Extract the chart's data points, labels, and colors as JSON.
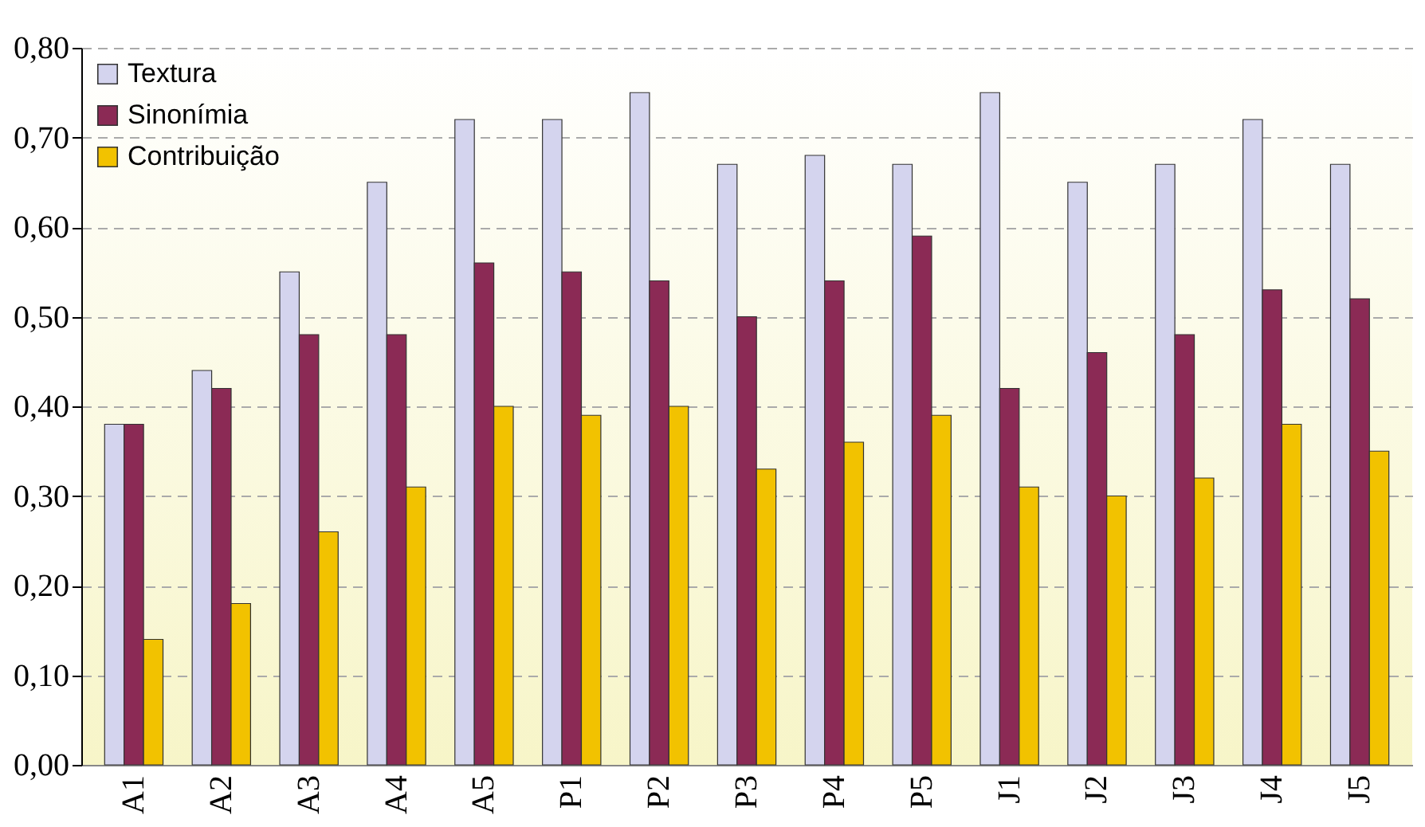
{
  "chart_data": {
    "type": "bar",
    "categories": [
      "A1",
      "A2",
      "A3",
      "A4",
      "A5",
      "P1",
      "P2",
      "P3",
      "P4",
      "P5",
      "J1",
      "J2",
      "J3",
      "J4",
      "J5"
    ],
    "series": [
      {
        "name": "Textura",
        "color": "#d4d4ee",
        "values": [
          0.38,
          0.44,
          0.55,
          0.65,
          0.72,
          0.72,
          0.75,
          0.67,
          0.68,
          0.67,
          0.75,
          0.65,
          0.67,
          0.72,
          0.67
        ]
      },
      {
        "name": "Sinonímia",
        "color": "#8b2a55",
        "values": [
          0.38,
          0.42,
          0.48,
          0.48,
          0.56,
          0.55,
          0.54,
          0.5,
          0.54,
          0.59,
          0.42,
          0.46,
          0.48,
          0.53,
          0.52
        ]
      },
      {
        "name": "Contribuição",
        "color": "#f2c200",
        "values": [
          0.14,
          0.18,
          0.26,
          0.31,
          0.4,
          0.39,
          0.4,
          0.33,
          0.36,
          0.39,
          0.31,
          0.3,
          0.32,
          0.38,
          0.35
        ]
      }
    ],
    "ylim": [
      0,
      0.8
    ],
    "yticks": [
      {
        "value": 0,
        "label": "0,00"
      },
      {
        "value": 0.1,
        "label": "0,10"
      },
      {
        "value": 0.2,
        "label": "0,20"
      },
      {
        "value": 0.3,
        "label": "0,30"
      },
      {
        "value": 0.4,
        "label": "0,40"
      },
      {
        "value": 0.5,
        "label": "0,50"
      },
      {
        "value": 0.6,
        "label": "0,60"
      },
      {
        "value": 0.7,
        "label": "0,70"
      },
      {
        "value": 0.8,
        "label": "0,80"
      }
    ],
    "grid": "y",
    "legend": "top left"
  }
}
